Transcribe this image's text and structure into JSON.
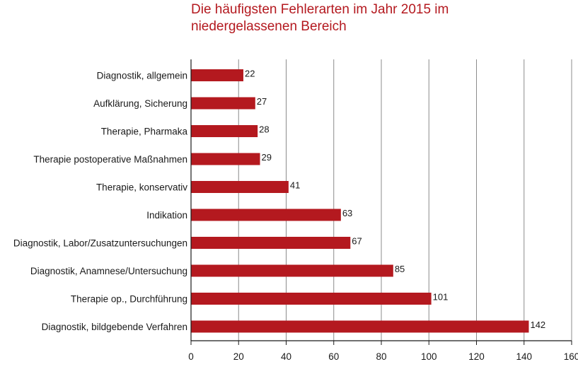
{
  "chart_data": {
    "type": "bar",
    "orientation": "horizontal",
    "title": "Die häufigsten Fehlerarten im Jahr 2015 im niedergelassenen Bereich",
    "title_lines": [
      "Die häufigsten Fehlerarten im Jahr 2015 im",
      "niedergelassenen Bereich"
    ],
    "categories": [
      "Diagnostik, allgemein",
      "Aufklärung, Sicherung",
      "Therapie, Pharmaka",
      "Therapie postoperative Maßnahmen",
      "Therapie, konservativ",
      "Indikation",
      "Diagnostik, Labor/Zusatzuntersuchungen",
      "Diagnostik, Anamnese/Untersuchung",
      "Therapie op., Durchführung",
      "Diagnostik, bildgebende Verfahren"
    ],
    "values": [
      22,
      27,
      28,
      29,
      41,
      63,
      67,
      85,
      101,
      142
    ],
    "xlim": [
      0,
      160
    ],
    "xticks": [
      0,
      20,
      40,
      60,
      80,
      100,
      120,
      140,
      160
    ],
    "xlabel": "",
    "ylabel": "",
    "grid": true,
    "legend": "none",
    "colors": {
      "bar": "#b4191f",
      "title": "#b4191f",
      "grid": "#8c8c8c",
      "axis": "#1a1a1a",
      "text": "#1a1a1a"
    }
  }
}
